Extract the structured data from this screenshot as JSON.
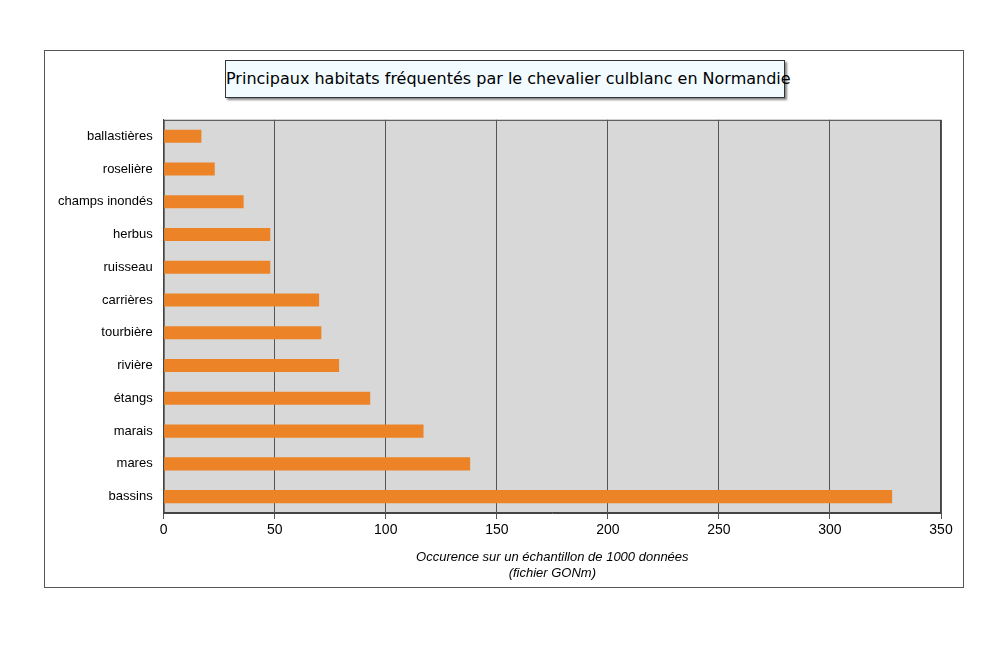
{
  "chart_data": {
    "type": "bar",
    "orientation": "horizontal",
    "title": "Principaux habitats fréquentés par le chevalier culblanc en Normandie",
    "xlabel": [
      "Occurence sur un échantillon de 1000 données",
      "(fichier GONm)"
    ],
    "categories": [
      "ballastières",
      "roselière",
      "champs inondés",
      "herbus",
      "ruisseau",
      "carrières",
      "tourbière",
      "rivière",
      "étangs",
      "marais",
      "mares",
      "bassins"
    ],
    "values": [
      17,
      23,
      36,
      48,
      48,
      70,
      71,
      79,
      93,
      117,
      138,
      328
    ],
    "color": "#ec8427",
    "xlim": [
      0,
      350
    ],
    "xticks": [
      0,
      50,
      100,
      150,
      200,
      250,
      300,
      350
    ],
    "grid": true
  }
}
